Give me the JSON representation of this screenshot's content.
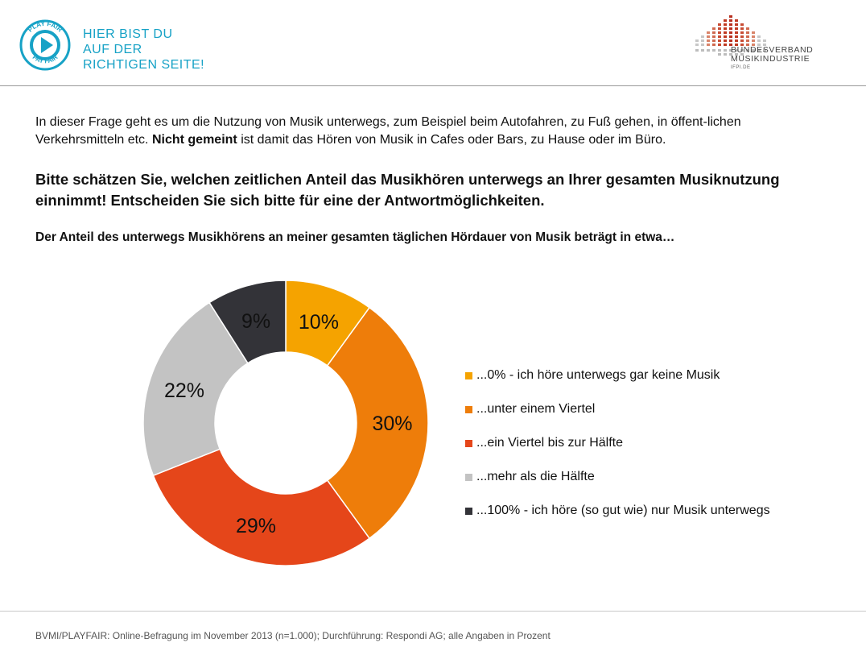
{
  "header": {
    "logo_ring_top": "PLAY FAIR",
    "logo_ring_bottom": "PAY FAIR",
    "slogan_lines": [
      "HIER BIST DU",
      "AUF DER",
      "RICHTIGEN SEITE!"
    ],
    "org_name_line1": "BUNDESVERBAND",
    "org_name_line2": "MUSIKINDUSTRIE",
    "org_domain": "IFPI.DE",
    "brand_color": "#17a2c6"
  },
  "intro": {
    "text_before": "In dieser Frage geht es um die Nutzung von Musik unterwegs, zum Beispiel beim Autofahren, zu Fuß gehen, in öffent-lichen Verkehrsmitteln etc. ",
    "bold": "Nicht gemeint",
    "text_after": " ist damit das Hören von Musik in Cafes oder Bars, zu Hause oder im Büro."
  },
  "question": "Bitte schätzen Sie, welchen zeitlichen Anteil das Musikhören unterwegs an Ihrer gesamten Musiknutzung einnimmt! Entscheiden Sie sich bitte für eine der Antwortmöglichkeiten.",
  "subquestion": "Der Anteil des unterwegs Musikhörens an meiner gesamten täglichen Hördauer von Musik beträgt in etwa…",
  "chart_data": {
    "type": "pie",
    "donut": true,
    "categories": [
      "...0% - ich höre unterwegs gar keine Musik",
      "...unter einem Viertel",
      "...ein Viertel bis zur Hälfte",
      "...mehr als die Hälfte",
      "...100% - ich höre (so gut wie) nur Musik unterwegs"
    ],
    "values": [
      10,
      30,
      29,
      22,
      9
    ],
    "value_labels": [
      "10%",
      "30%",
      "29%",
      "22%",
      "9%"
    ],
    "colors": [
      "#f5a300",
      "#ee7d0a",
      "#e5461a",
      "#c3c3c3",
      "#333338"
    ],
    "legend_position": "right"
  },
  "footer": {
    "source": "BVMI/PLAYFAIR: Online-Befragung im November 2013 (n=1.000); Durchführung: Respondi AG; alle Angaben in Prozent"
  }
}
